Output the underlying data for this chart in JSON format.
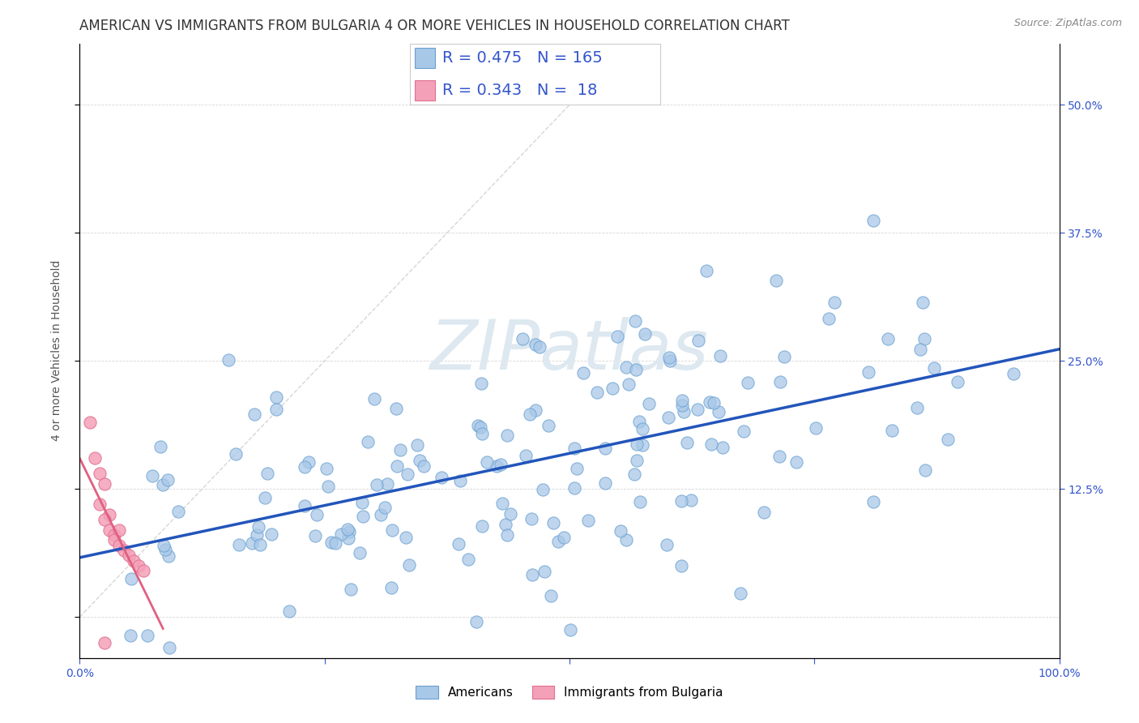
{
  "title": "AMERICAN VS IMMIGRANTS FROM BULGARIA 4 OR MORE VEHICLES IN HOUSEHOLD CORRELATION CHART",
  "source": "Source: ZipAtlas.com",
  "ylabel": "4 or more Vehicles in Household",
  "xlim": [
    0,
    1.0
  ],
  "ylim": [
    -0.04,
    0.56
  ],
  "R_american": 0.475,
  "N_american": 165,
  "R_bulgaria": 0.343,
  "N_bulgaria": 18,
  "american_dot_color": "#a8c8e8",
  "american_dot_edge": "#6aa0d0",
  "bulgaria_dot_color": "#f4a0b8",
  "bulgaria_dot_edge": "#e07090",
  "american_line_color": "#2255bb",
  "bulgaria_line_color": "#e06080",
  "diagonal_color": "#cccccc",
  "legend_blue_color": "#3355cc",
  "watermark_color": "#dde8f0",
  "background_color": "#ffffff",
  "title_color": "#333333",
  "title_fontsize": 12,
  "axis_label_fontsize": 10,
  "tick_fontsize": 10,
  "legend_fontsize": 14,
  "right_tick_color": "#3355cc"
}
